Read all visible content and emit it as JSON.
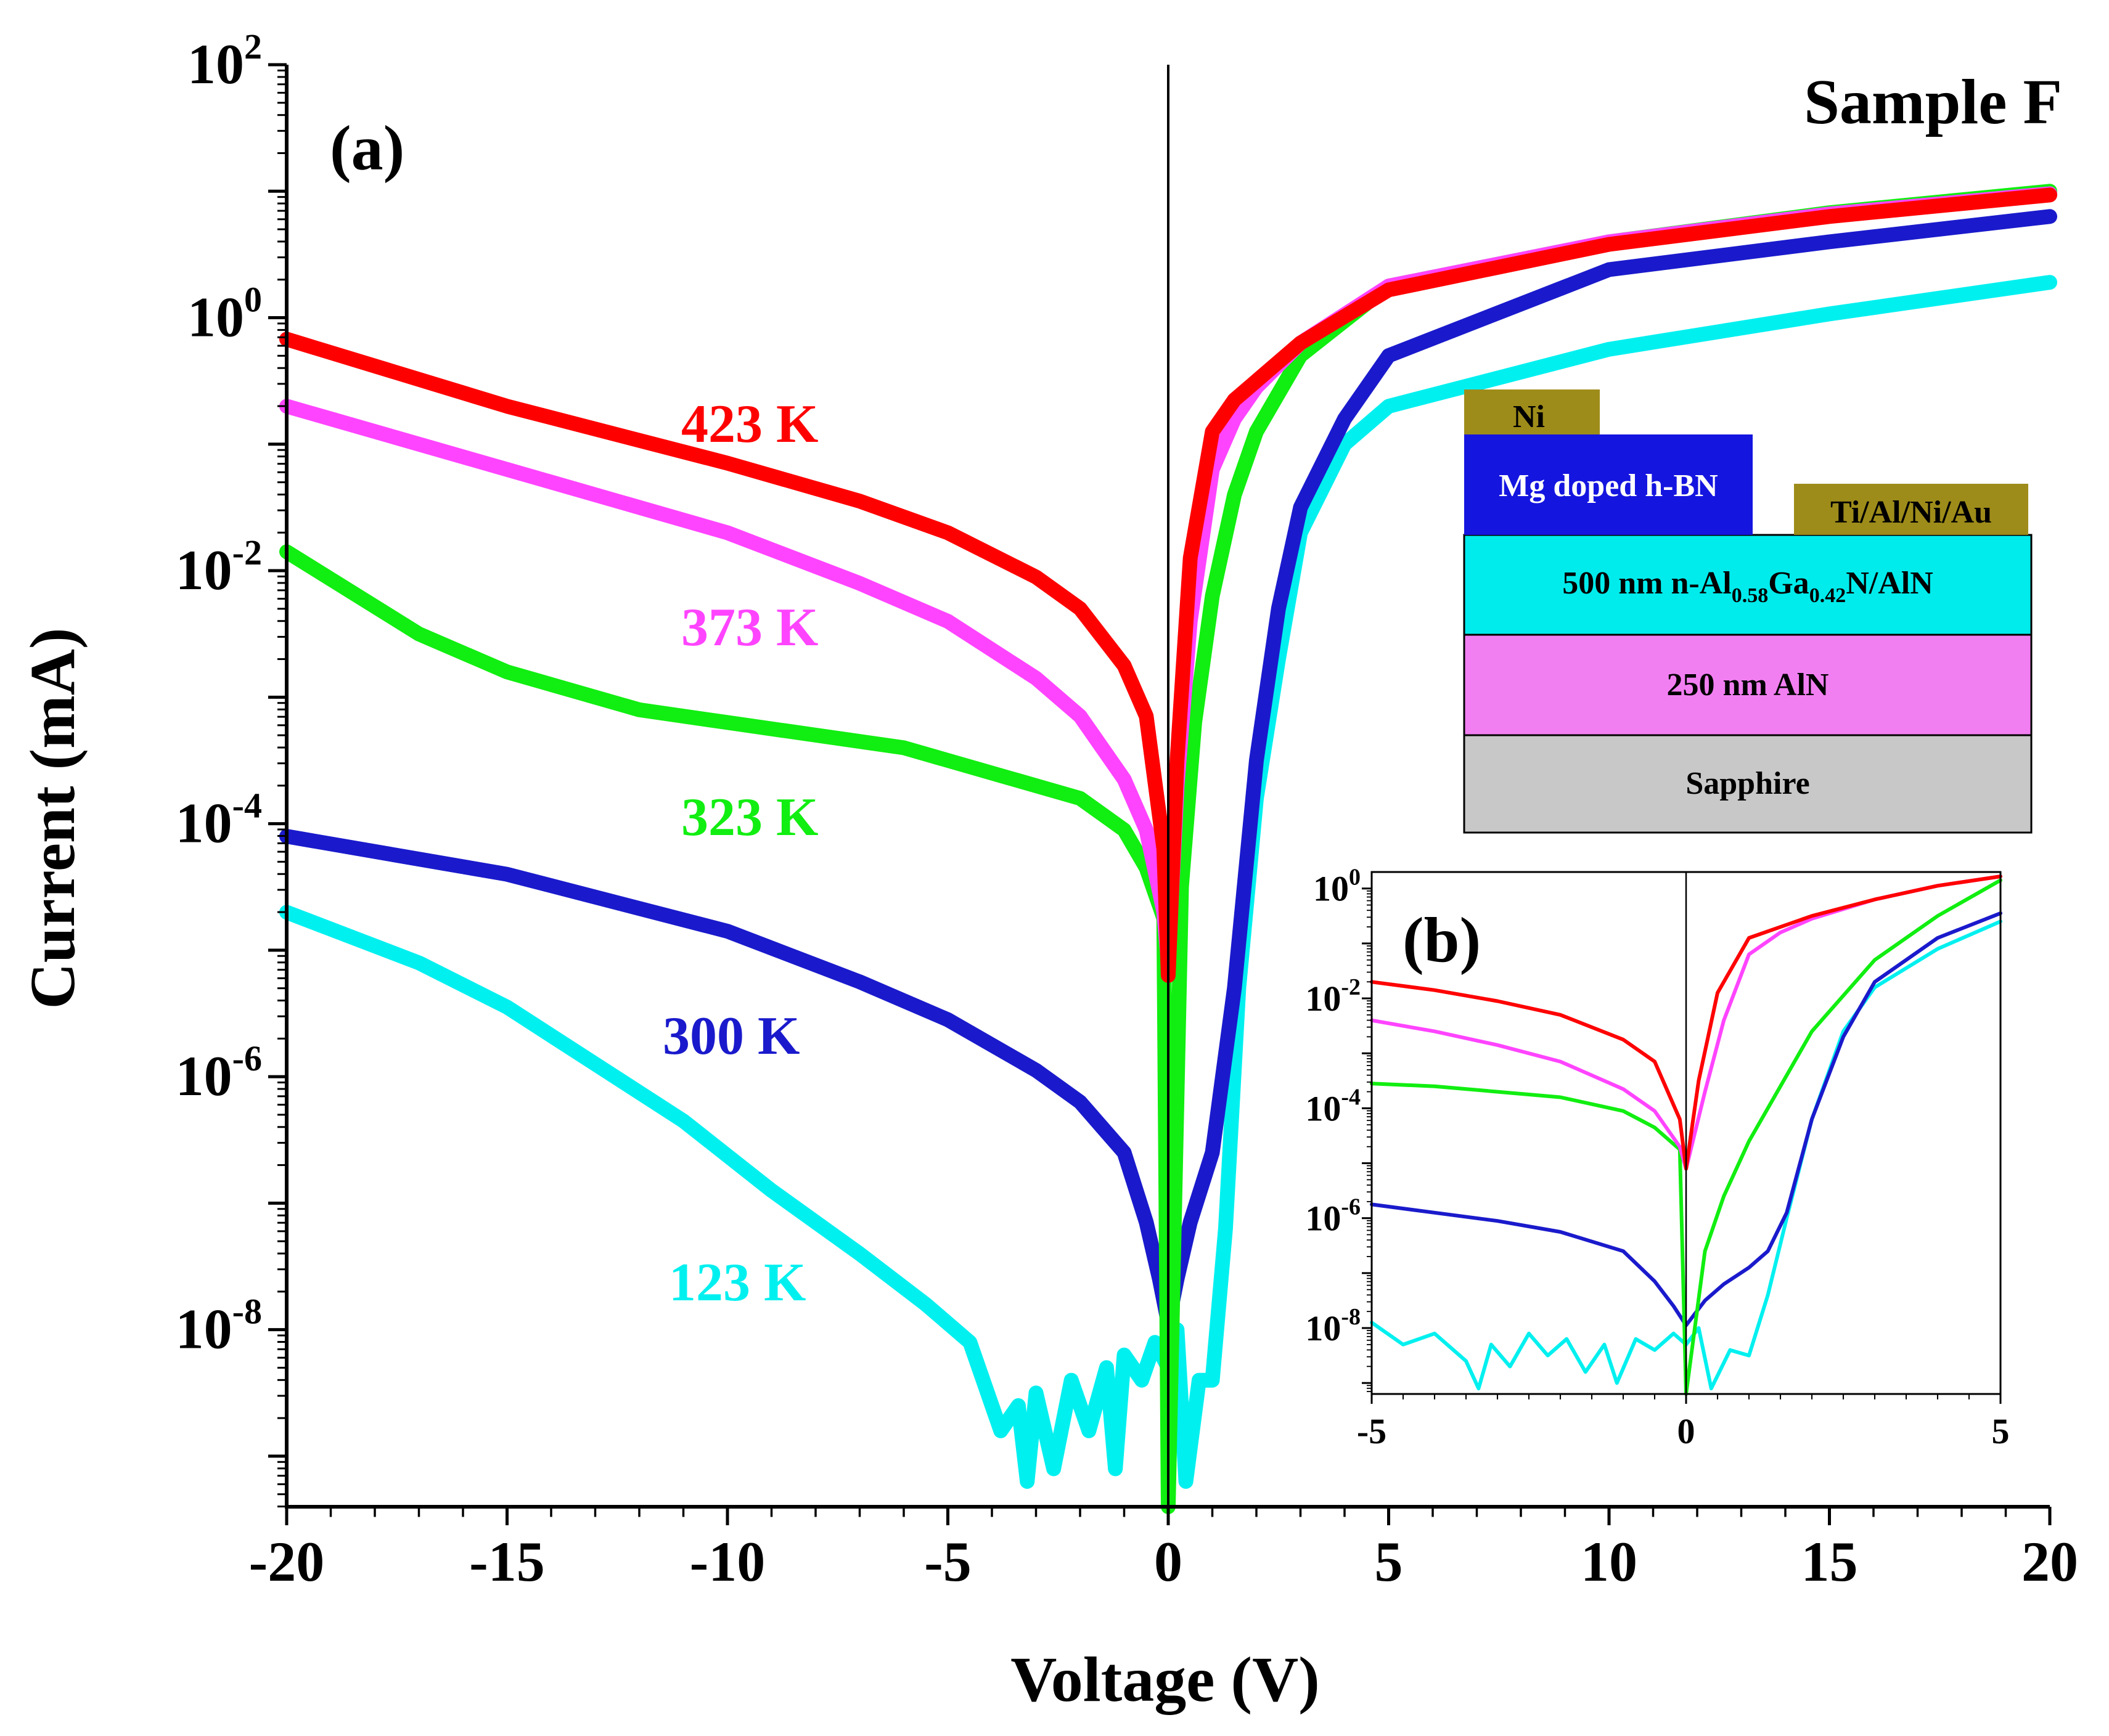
{
  "figure": {
    "sample_label": "Sample F",
    "panel_a_label": "(a)",
    "panel_b_label": "(b)"
  },
  "chart_data": [
    {
      "type": "line",
      "panel": "(a)",
      "title": "Sample F",
      "xlabel": "Voltage (V)",
      "ylabel": "Current (mA)",
      "yscale": "log",
      "xlim": [
        -20,
        20
      ],
      "ylim_exp": [
        -9.4,
        2
      ],
      "x_ticks": [
        -20,
        -15,
        -10,
        -5,
        0,
        5,
        10,
        15,
        20
      ],
      "y_ticks": [
        {
          "base": "10",
          "exp": "2",
          "value_exp": 2
        },
        {
          "base": "10",
          "exp": "0",
          "value_exp": 0
        },
        {
          "base": "10",
          "exp": "-2",
          "value_exp": -2
        },
        {
          "base": "10",
          "exp": "-4",
          "value_exp": -4
        },
        {
          "base": "10",
          "exp": "-6",
          "value_exp": -6
        },
        {
          "base": "10",
          "exp": "-8",
          "value_exp": -8
        }
      ],
      "series": [
        {
          "name": "423 K",
          "color": "#ff0000",
          "x": [
            -20,
            -15,
            -10,
            -7,
            -5,
            -3,
            -2,
            -1,
            -0.5,
            -0.1,
            0,
            0.2,
            0.5,
            1,
            1.5,
            2,
            3,
            5,
            10,
            15,
            20
          ],
          "log_y": [
            -0.17,
            -0.7,
            -1.15,
            -1.45,
            -1.7,
            -2.05,
            -2.3,
            -2.75,
            -3.15,
            -4.2,
            -5.2,
            -3.5,
            -1.9,
            -0.9,
            -0.65,
            -0.5,
            -0.2,
            0.22,
            0.58,
            0.8,
            0.97
          ]
        },
        {
          "name": "373 K",
          "color": "#ff44ff",
          "x": [
            -20,
            -15,
            -10,
            -7,
            -5,
            -3,
            -2,
            -1,
            -0.5,
            -0.1,
            0,
            0.2,
            0.5,
            1,
            1.5,
            2,
            3,
            5,
            10,
            15,
            20
          ],
          "log_y": [
            -0.7,
            -1.2,
            -1.7,
            -2.1,
            -2.4,
            -2.85,
            -3.15,
            -3.65,
            -4.05,
            -4.7,
            -5.1,
            -3.7,
            -2.4,
            -1.2,
            -0.8,
            -0.55,
            -0.2,
            0.25,
            0.6,
            0.82,
            0.98
          ]
        },
        {
          "name": "323 K",
          "color": "#11ee11",
          "x": [
            -20,
            -17,
            -15,
            -12,
            -10,
            -8,
            -6,
            -4,
            -2,
            -1,
            -0.5,
            -0.1,
            0,
            0.3,
            0.6,
            1,
            1.5,
            2,
            3,
            5,
            10,
            15,
            20
          ],
          "log_y": [
            -1.85,
            -2.5,
            -2.8,
            -3.1,
            -3.2,
            -3.3,
            -3.4,
            -3.6,
            -3.8,
            -4.05,
            -4.35,
            -4.75,
            -9.4,
            -4.5,
            -3.2,
            -2.2,
            -1.4,
            -0.9,
            -0.3,
            0.25,
            0.6,
            0.83,
            1.0
          ]
        },
        {
          "name": "300 K",
          "color": "#1a1acc",
          "x": [
            -20,
            -15,
            -10,
            -7,
            -5,
            -3,
            -2,
            -1,
            -0.5,
            -0.2,
            0,
            0.2,
            0.5,
            1,
            1.5,
            2,
            2.5,
            3,
            4,
            5,
            10,
            15,
            20
          ],
          "log_y": [
            -4.1,
            -4.4,
            -4.85,
            -5.25,
            -5.55,
            -5.95,
            -6.2,
            -6.6,
            -7.15,
            -7.6,
            -7.95,
            -7.6,
            -7.15,
            -6.6,
            -5.3,
            -3.5,
            -2.3,
            -1.5,
            -0.8,
            -0.3,
            0.38,
            0.6,
            0.8
          ]
        },
        {
          "name": "123 K",
          "color": "#00f0f0",
          "x": [
            -20,
            -17,
            -15,
            -13,
            -11,
            -9,
            -7,
            -5.5,
            -4.5,
            -3.8,
            -3.4,
            -3.2,
            -3.0,
            -2.6,
            -2.2,
            -1.8,
            -1.4,
            -1.2,
            -1.0,
            -0.6,
            -0.3,
            0,
            0.2,
            0.4,
            0.7,
            1.0,
            1.3,
            1.6,
            2,
            2.5,
            3,
            4,
            5,
            10,
            15,
            20
          ],
          "log_y": [
            -4.7,
            -5.1,
            -5.45,
            -5.9,
            -6.35,
            -6.9,
            -7.4,
            -7.8,
            -8.1,
            -8.8,
            -8.6,
            -9.2,
            -8.5,
            -9.1,
            -8.4,
            -8.8,
            -8.3,
            -9.1,
            -8.2,
            -8.4,
            -8.1,
            -8.3,
            -8.0,
            -9.2,
            -8.4,
            -8.4,
            -7.2,
            -5.3,
            -3.8,
            -2.7,
            -1.7,
            -1.0,
            -0.7,
            -0.25,
            0.03,
            0.28
          ]
        }
      ],
      "labels": [
        "423 K",
        "373 K",
        "323 K",
        "300 K",
        "123 K"
      ]
    },
    {
      "type": "line",
      "panel": "(b)",
      "yscale": "log",
      "xlim": [
        -5,
        5
      ],
      "ylim_exp": [
        -9.2,
        0.3
      ],
      "x_ticks": [
        -5,
        0,
        5
      ],
      "y_ticks": [
        {
          "base": "10",
          "exp": "0",
          "value_exp": 0
        },
        {
          "base": "10",
          "exp": "-2",
          "value_exp": -2
        },
        {
          "base": "10",
          "exp": "-4",
          "value_exp": -4
        },
        {
          "base": "10",
          "exp": "-6",
          "value_exp": -6
        },
        {
          "base": "10",
          "exp": "-8",
          "value_exp": -8
        }
      ],
      "series": [
        {
          "name": "423 K",
          "color": "#ff0000",
          "x": [
            -5,
            -4,
            -3,
            -2,
            -1,
            -0.5,
            -0.1,
            0,
            0.2,
            0.5,
            1,
            2,
            3,
            4,
            5
          ],
          "log_y": [
            -1.7,
            -1.85,
            -2.05,
            -2.3,
            -2.75,
            -3.15,
            -4.2,
            -5.1,
            -3.5,
            -1.9,
            -0.9,
            -0.5,
            -0.2,
            0.05,
            0.22
          ]
        },
        {
          "name": "373 K",
          "color": "#ff44ff",
          "x": [
            -5,
            -4,
            -3,
            -2,
            -1,
            -0.5,
            -0.1,
            0,
            0.3,
            0.6,
            1,
            1.5,
            2,
            3,
            4,
            5
          ],
          "log_y": [
            -2.4,
            -2.6,
            -2.85,
            -3.15,
            -3.65,
            -4.05,
            -4.7,
            -5.1,
            -3.7,
            -2.4,
            -1.2,
            -0.8,
            -0.55,
            -0.2,
            0.05,
            0.22
          ]
        },
        {
          "name": "323 K",
          "color": "#11ee11",
          "x": [
            -5,
            -4,
            -3,
            -2,
            -1,
            -0.5,
            -0.1,
            0,
            0.3,
            0.6,
            1,
            1.5,
            2,
            3,
            4,
            5
          ],
          "log_y": [
            -3.55,
            -3.6,
            -3.7,
            -3.8,
            -4.05,
            -4.35,
            -4.75,
            -9.2,
            -6.6,
            -5.6,
            -4.6,
            -3.6,
            -2.6,
            -1.3,
            -0.5,
            0.15
          ]
        },
        {
          "name": "300 K",
          "color": "#1a1acc",
          "x": [
            -5,
            -4,
            -3,
            -2,
            -1,
            -0.5,
            -0.2,
            0,
            0.3,
            0.6,
            1,
            1.3,
            1.6,
            2,
            2.5,
            3,
            4,
            5
          ],
          "log_y": [
            -5.75,
            -5.9,
            -6.05,
            -6.25,
            -6.6,
            -7.15,
            -7.6,
            -7.95,
            -7.5,
            -7.2,
            -6.9,
            -6.6,
            -5.9,
            -4.2,
            -2.7,
            -1.7,
            -0.9,
            -0.45
          ]
        },
        {
          "name": "123 K",
          "color": "#00f0f0",
          "x": [
            -5,
            -4.5,
            -4,
            -3.5,
            -3.3,
            -3.1,
            -2.8,
            -2.5,
            -2.2,
            -1.9,
            -1.6,
            -1.3,
            -1.1,
            -0.8,
            -0.5,
            -0.2,
            0,
            0.2,
            0.4,
            0.7,
            1,
            1.3,
            1.6,
            2,
            2.5,
            3,
            4,
            5
          ],
          "log_y": [
            -7.9,
            -8.3,
            -8.1,
            -8.6,
            -9.1,
            -8.3,
            -8.7,
            -8.1,
            -8.5,
            -8.2,
            -8.8,
            -8.3,
            -9.0,
            -8.2,
            -8.4,
            -8.1,
            -8.3,
            -8.0,
            -9.1,
            -8.4,
            -8.5,
            -7.4,
            -6.0,
            -4.2,
            -2.6,
            -1.8,
            -1.1,
            -0.6
          ]
        }
      ]
    }
  ],
  "device_stack": {
    "layers": [
      {
        "name": "Ni",
        "color": "#9e8c1a"
      },
      {
        "name": "Mg doped h-BN",
        "color": "#1515e0",
        "text_color": "#ffffff"
      },
      {
        "name": "Ti/Al/Ni/Au",
        "color": "#9e8c1a"
      },
      {
        "name": "500 nm n-Al0.58Ga0.42N/AlN",
        "prefix": "500 nm n-Al",
        "sub1": "0.58",
        "mid": "Ga",
        "sub2": "0.42",
        "suffix": "N/AlN",
        "color": "#00ecec"
      },
      {
        "name": "250 nm AlN",
        "color": "#f27ff2"
      },
      {
        "name": "Sapphire",
        "color": "#c8c8c8"
      }
    ]
  }
}
